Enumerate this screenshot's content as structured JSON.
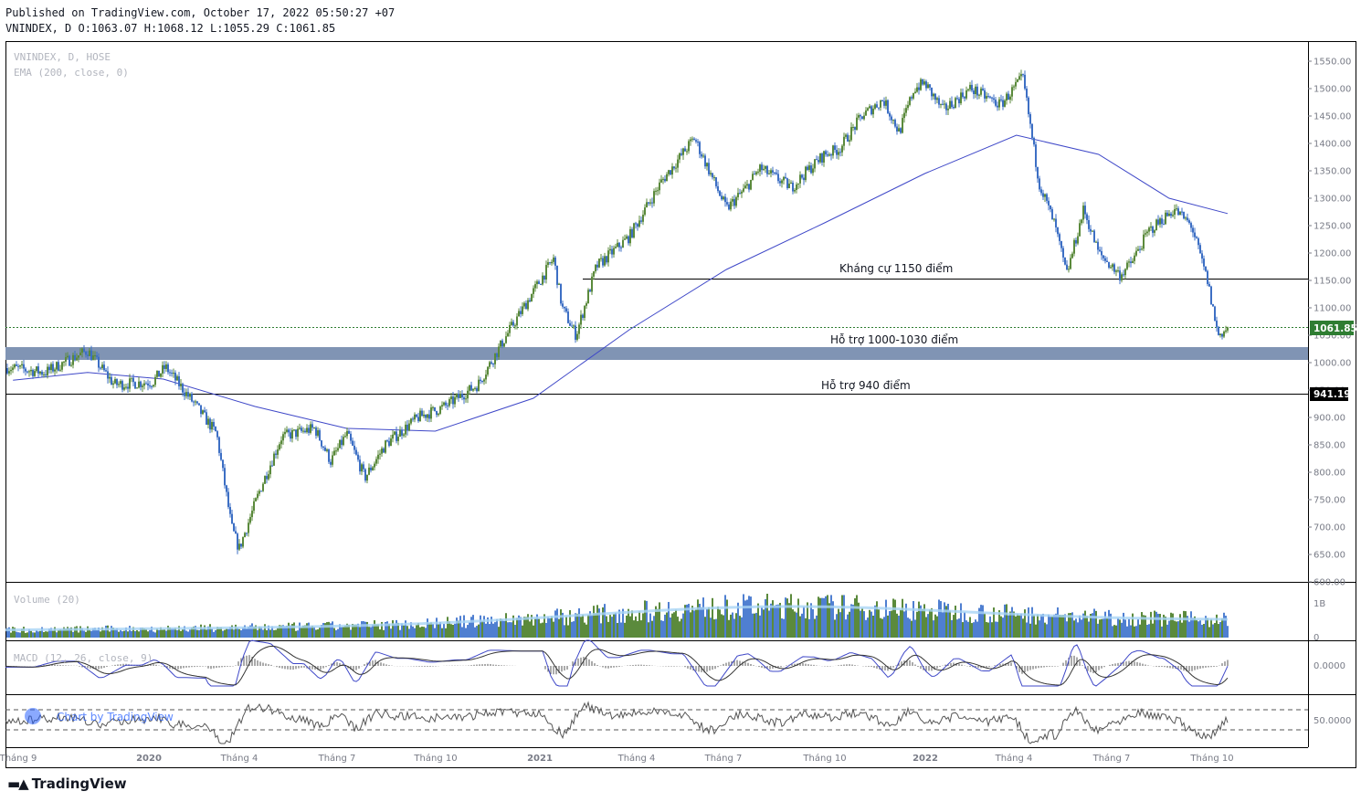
{
  "header": {
    "published_line": "Published on TradingView.com, October 17, 2022 05:50:27 +07",
    "ohlc_line": "VNINDEX, D O:1063.07 H:1068.12 L:1055.29 C:1061.85"
  },
  "legend": {
    "symbol": "VNINDEX, D, HOSE",
    "ema": "EMA (200, close, 0)"
  },
  "price_badge": "1061.85",
  "support_badge": "941.19",
  "annotations": {
    "resistance": "Kháng cự 1150 điểm",
    "support_zone": "Hỗ trợ 1000-1030 điểm",
    "support_940": "Hỗ trợ 940 điểm"
  },
  "panes": {
    "volume_label": "Volume (20)",
    "volume_ticks": [
      "1B",
      "0"
    ],
    "macd_label": "MACD (12, 26, close, 9)",
    "macd_tick": "0.0000",
    "rsi_tick": "50.0000"
  },
  "watermark": "Chart by TradingView",
  "footer_brand": "TradingView",
  "colors": {
    "up_candle": "#5b8a3c",
    "down_candle": "#3d6fc4",
    "ema_line": "#3f48c8",
    "support_zone": "#8094b4",
    "price_line": "#2e7d32",
    "volume_ma": "#a9d4f5"
  },
  "chart_data": {
    "type": "line",
    "title": "VNINDEX, D, HOSE",
    "xlabel": "",
    "ylabel": "",
    "x_ticks": [
      "Tháng 9",
      "2020",
      "Tháng 4",
      "Tháng 7",
      "Tháng 10",
      "2021",
      "Tháng 4",
      "Tháng 7",
      "Tháng 10",
      "2022",
      "Tháng 4",
      "Tháng 7",
      "Tháng 10"
    ],
    "y_ticks": [
      600,
      650,
      700,
      750,
      800,
      850,
      900,
      950,
      1000,
      1050,
      1100,
      1150,
      1200,
      1250,
      1300,
      1350,
      1400,
      1450,
      1500,
      1550
    ],
    "ylim": [
      590,
      1570
    ],
    "grid": true,
    "series": [
      {
        "name": "VNINDEX",
        "x": [
          "2019-09-01",
          "2019-10-01",
          "2019-11-10",
          "2019-12-05",
          "2020-01-10",
          "2020-01-22",
          "2020-02-20",
          "2020-03-10",
          "2020-03-24",
          "2020-03-31",
          "2020-04-20",
          "2020-05-10",
          "2020-06-10",
          "2020-06-25",
          "2020-07-10",
          "2020-07-27",
          "2020-08-15",
          "2020-09-15",
          "2020-10-10",
          "2020-11-10",
          "2020-12-10",
          "2021-01-20",
          "2021-01-28",
          "2021-02-10",
          "2021-03-01",
          "2021-04-01",
          "2021-05-01",
          "2021-06-01",
          "2021-07-01",
          "2021-07-20",
          "2021-08-01",
          "2021-08-31",
          "2021-09-15",
          "2021-10-01",
          "2021-10-15",
          "2021-11-05",
          "2021-11-25",
          "2021-12-10",
          "2021-12-24",
          "2022-01-03",
          "2022-01-20",
          "2022-02-15",
          "2022-03-15",
          "2022-04-05",
          "2022-04-20",
          "2022-05-05",
          "2022-05-16",
          "2022-06-01",
          "2022-06-15",
          "2022-07-05",
          "2022-07-15",
          "2022-08-01",
          "2022-08-25",
          "2022-09-10",
          "2022-09-25",
          "2022-10-05",
          "2022-10-14"
        ],
        "values": [
          990,
          982,
          1022,
          960,
          965,
          992,
          920,
          870,
          700,
          660,
          770,
          865,
          880,
          820,
          870,
          790,
          850,
          900,
          920,
          960,
          1060,
          1190,
          1100,
          1050,
          1175,
          1230,
          1330,
          1410,
          1280,
          1320,
          1355,
          1320,
          1350,
          1380,
          1390,
          1450,
          1480,
          1420,
          1500,
          1510,
          1460,
          1500,
          1470,
          1520,
          1330,
          1250,
          1160,
          1280,
          1200,
          1160,
          1180,
          1240,
          1280,
          1250,
          1150,
          1050,
          1061.85
        ]
      },
      {
        "name": "EMA (200, close, 0)",
        "x": [
          "2019-09-01",
          "2019-11-10",
          "2020-01-20",
          "2020-04-15",
          "2020-07-10",
          "2020-10-01",
          "2021-01-01",
          "2021-04-01",
          "2021-07-01",
          "2021-10-01",
          "2022-01-03",
          "2022-03-30",
          "2022-06-15",
          "2022-08-20",
          "2022-10-14"
        ],
        "values": [
          968,
          982,
          970,
          920,
          880,
          875,
          935,
          1060,
          1170,
          1255,
          1345,
          1415,
          1380,
          1300,
          1272
        ]
      }
    ],
    "horizontal_levels": [
      {
        "label": "Kháng cự 1150 điểm",
        "value": 1150
      },
      {
        "label": "Hỗ trợ 1000-1030 điểm",
        "range": [
          1003,
          1025
        ]
      },
      {
        "label": "Hỗ trợ 940 điểm",
        "value": 941.19
      }
    ]
  }
}
